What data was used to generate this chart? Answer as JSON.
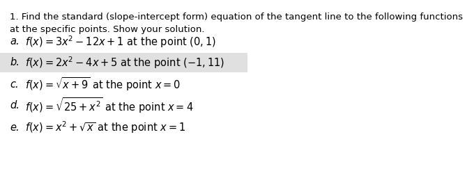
{
  "title_line1": "1. Find the standard (slope-intercept form) equation of the tangent line to the following functions",
  "title_line2": "at the specific points. Show your solution.",
  "items": [
    {
      "label": "a.",
      "math": "$f(x) = 3x^2 - 12x + 1$ at the point $(0,1)$",
      "highlight": false
    },
    {
      "label": "b.",
      "math": "$f(x) = 2x^2 - 4x + 5$ at the point $(-1,11)$",
      "highlight": true
    },
    {
      "label": "c.",
      "math": "$f(x) = \\sqrt{x+9}$ at the point $x = 0$",
      "highlight": false
    },
    {
      "label": "d.",
      "math": "$f(x) = \\sqrt{25 + x^2}$ at the point $x = 4$",
      "highlight": false
    },
    {
      "label": "e.",
      "math": "$f(x) = x^2 + \\sqrt{x}$ at the point $x = 1$",
      "highlight": false
    }
  ],
  "bg_color": "#ffffff",
  "text_color": "#000000",
  "highlight_color": "#e0e0e0",
  "title_fontsize": 9.5,
  "item_fontsize": 10.5,
  "label_fontsize": 10.5
}
